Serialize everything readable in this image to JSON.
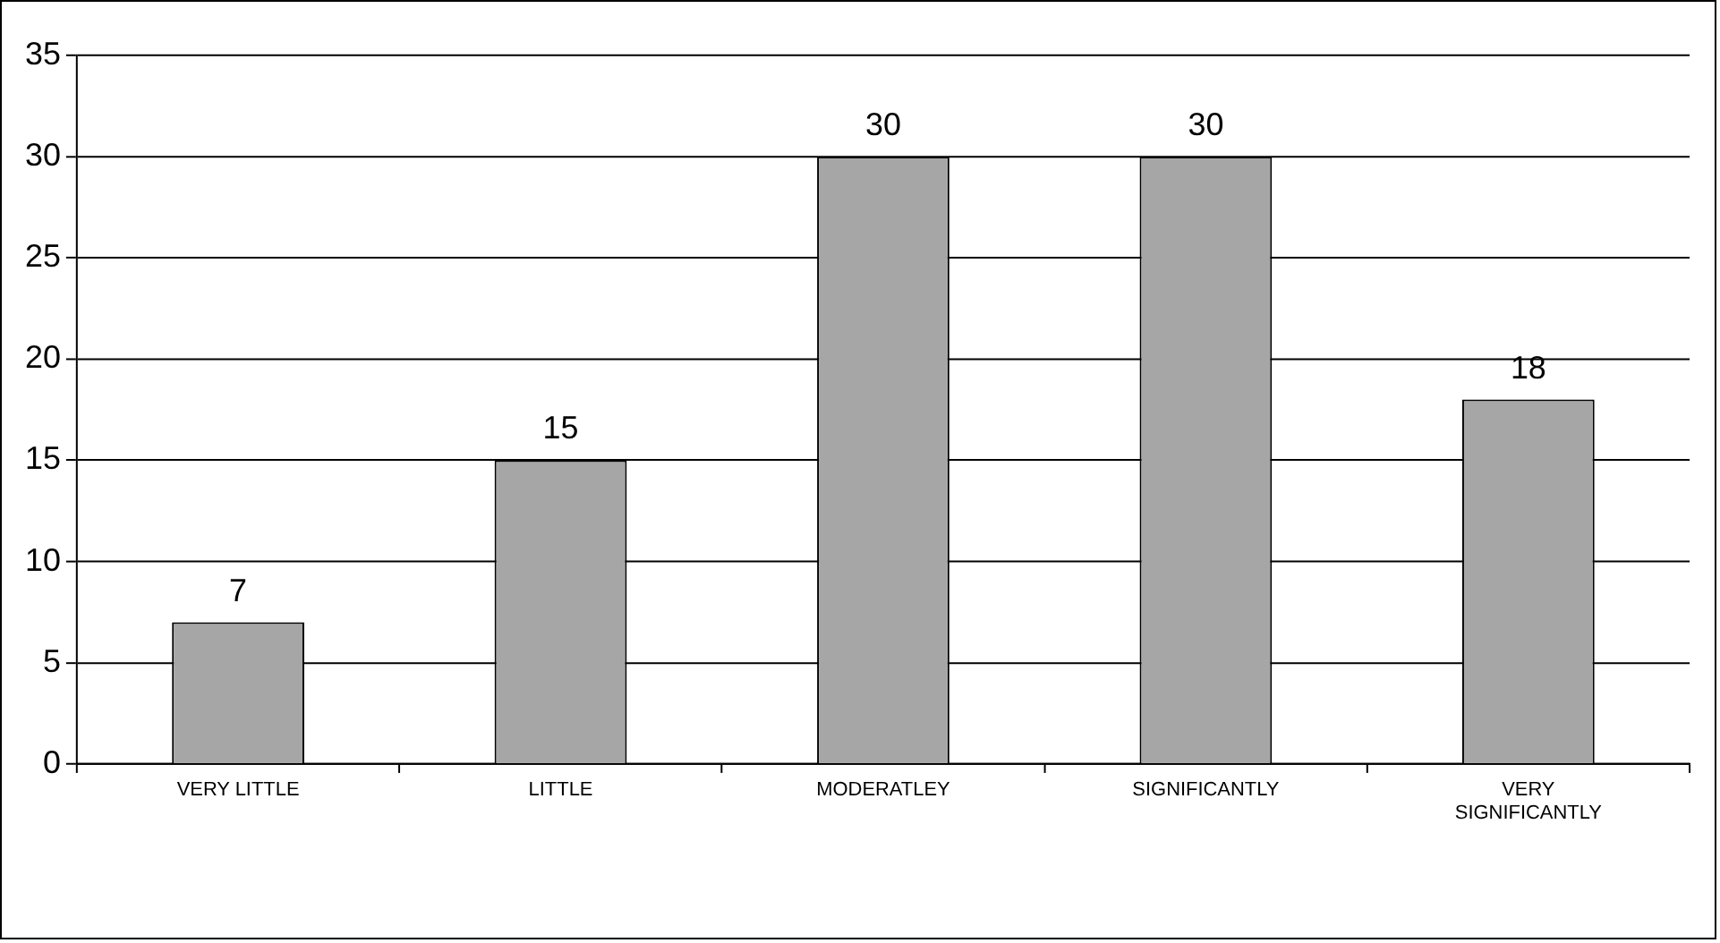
{
  "chart_data": {
    "type": "bar",
    "categories": [
      "VERY LITTLE",
      "LITTLE",
      "MODERATLEY",
      "SIGNIFICANTLY",
      "VERY SIGNIFICANTLY"
    ],
    "values": [
      7,
      15,
      30,
      30,
      18
    ],
    "color": "#a6a6a6",
    "ylim": [
      0,
      35
    ],
    "yticks": [
      0,
      5,
      10,
      15,
      20,
      25,
      30,
      35
    ],
    "grid": "y",
    "data_labels": true
  }
}
